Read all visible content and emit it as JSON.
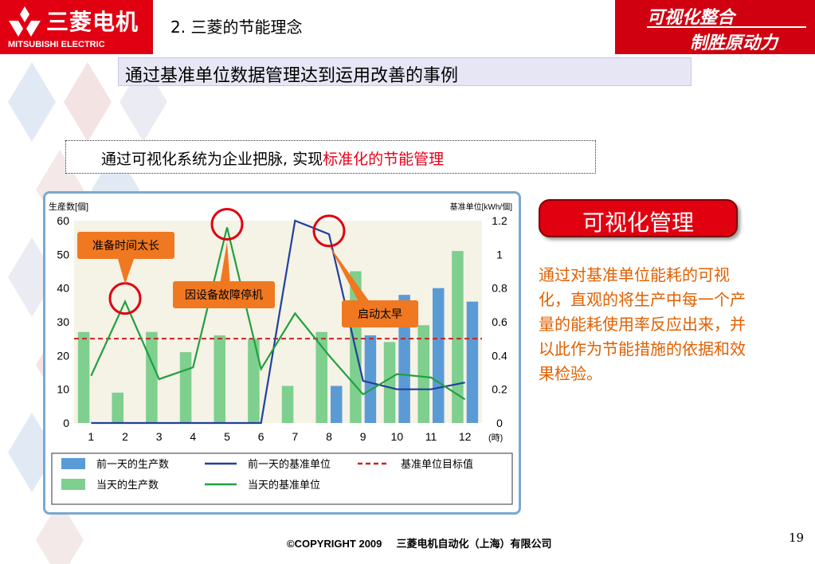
{
  "header": {
    "logo_cn": "三菱电机",
    "logo_en": "MITSUBISHI ELECTRIC",
    "section_title": "2. 三菱的节能理念",
    "slogan_line1": "可视化整合",
    "slogan_line2": "制胜原动力",
    "brand_color": "#d00010"
  },
  "subtitle": "通过基准单位数据管理达到运用改善的事例",
  "banner": {
    "text": "通过可视化系统为企业把脉,  实现",
    "highlight": "标准化的节能管理"
  },
  "visual_button": "可视化管理",
  "description": "通过对基准单位能耗的可视化，直观的将生产中每一个产量的能耗使用率反应出来，并以此作为节能措施的依据和效果检验。",
  "footer": "©COPYRIGHT 2009     三菱电机自动化（上海）有限公司",
  "page_number": "19",
  "chart_data": {
    "type": "bar",
    "left_axis_label": "生産数[個]",
    "right_axis_label": "基准单位[kWh/個]",
    "x_unit": "(時)",
    "categories": [
      "1",
      "2",
      "3",
      "4",
      "5",
      "6",
      "7",
      "8",
      "9",
      "10",
      "11",
      "12"
    ],
    "ylim": [
      0,
      60
    ],
    "y_ticks": [
      "0",
      "10",
      "20",
      "30",
      "40",
      "50",
      "60"
    ],
    "y2lim": [
      0,
      1.2
    ],
    "y2_ticks": [
      "0",
      "0.2",
      "0.4",
      "0.6",
      "0.8",
      "1",
      "1.2"
    ],
    "series": [
      {
        "name": "前一天的生产数",
        "type": "bar",
        "axis": "left",
        "color": "#5b9bd5",
        "values": [
          0,
          0,
          0,
          0,
          0,
          0,
          0,
          11,
          26,
          38,
          40,
          36
        ]
      },
      {
        "name": "当天的生产数",
        "type": "bar",
        "axis": "left",
        "color": "#7fcf8f",
        "values": [
          27,
          9,
          27,
          21,
          26,
          25,
          11,
          27,
          45,
          24,
          29,
          51
        ]
      },
      {
        "name": "前一天的基准单位",
        "type": "line",
        "axis": "right",
        "color": "#2040a0",
        "values": [
          0,
          0,
          0,
          0,
          0,
          0,
          1.2,
          1.12,
          0.25,
          0.2,
          0.2,
          0.24
        ]
      },
      {
        "name": "当天的基准单位",
        "type": "line",
        "axis": "right",
        "color": "#20a040",
        "values": [
          0.28,
          0.72,
          0.26,
          0.33,
          1.16,
          0.32,
          0.65,
          0.4,
          0.17,
          0.29,
          0.27,
          0.14
        ]
      },
      {
        "name": "基准单位目标值",
        "type": "hline",
        "axis": "right",
        "color": "#d02020",
        "value": 0.5
      }
    ],
    "annotations": [
      {
        "text": "准备时间太长",
        "x": "2"
      },
      {
        "text": "因设备故障停机",
        "x": "5"
      },
      {
        "text": "启动太早",
        "x": "8"
      }
    ],
    "highlight_points": [
      "2",
      "5",
      "8"
    ],
    "legend": [
      "前一天的生产数",
      "前一天的基准单位",
      "基准单位目标值",
      "当天的生产数",
      "当天的基准单位"
    ]
  }
}
